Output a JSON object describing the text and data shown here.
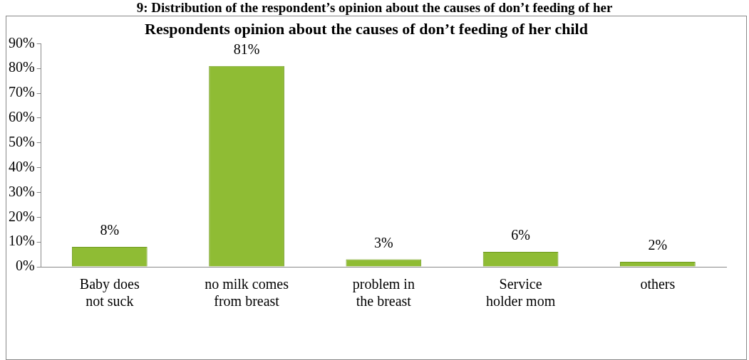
{
  "chart_data": {
    "type": "bar",
    "title": "Respondents opinion about the causes of don’t feeding of her child",
    "annotations": [
      "9: Distribution of the respondent’s opinion about the causes of don’t feeding of her"
    ],
    "categories": [
      "Baby does not suck",
      "no milk comes from breast",
      "problem in the breast",
      "Service holder mom",
      "others"
    ],
    "values": [
      8,
      81,
      3,
      6,
      2
    ],
    "color": "#8fbc34",
    "ylim": [
      0,
      90
    ],
    "yticks": [
      {
        "value": 0,
        "label": "0%"
      },
      {
        "value": 10,
        "label": "10%"
      },
      {
        "value": 20,
        "label": "20%"
      },
      {
        "value": 30,
        "label": "30%"
      },
      {
        "value": 40,
        "label": "40%"
      },
      {
        "value": 50,
        "label": "50%"
      },
      {
        "value": 60,
        "label": "60%"
      },
      {
        "value": 70,
        "label": "70%"
      },
      {
        "value": 80,
        "label": "80%"
      },
      {
        "value": 90,
        "label": "90%"
      }
    ],
    "value_labels": [
      "8%",
      "81%",
      "3%",
      "6%",
      "2%"
    ],
    "grid": false,
    "legend": false
  }
}
